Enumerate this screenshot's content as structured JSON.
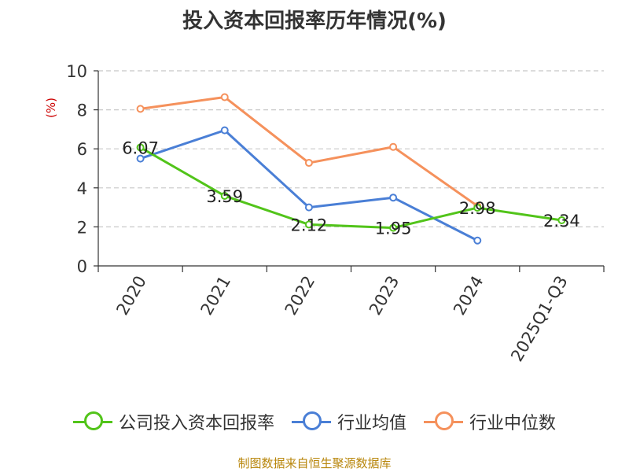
{
  "title": "投入资本回报率历年情况(%)",
  "unit_label": "(%)",
  "source": "制图数据来自恒生聚源数据库",
  "chart_data": {
    "type": "line",
    "title": "投入资本回报率历年情况(%)",
    "xlabel": "",
    "ylabel": "(%)",
    "ylim": [
      0,
      10
    ],
    "yticks": [
      "0",
      "2",
      "4",
      "6",
      "8",
      "10"
    ],
    "categories": [
      "2020",
      "2021",
      "2022",
      "2023",
      "2024",
      "2025Q1-Q3"
    ],
    "grid": true,
    "legend_position": "bottom",
    "series": [
      {
        "name": "公司投入资本回报率",
        "color": "#52c41a",
        "values": [
          6.07,
          3.59,
          2.12,
          1.95,
          2.98,
          2.34
        ],
        "labels": [
          "6.07",
          "3.59",
          "2.12",
          "1.95",
          "2.98",
          "2.34"
        ]
      },
      {
        "name": "行业均值",
        "color": "#4a7fd6",
        "values": [
          5.5,
          6.95,
          3.0,
          3.5,
          1.3,
          null
        ],
        "labels": []
      },
      {
        "name": "行业中位数",
        "color": "#f5915c",
        "values": [
          8.05,
          8.65,
          5.28,
          6.1,
          3.07,
          null
        ],
        "labels": []
      }
    ]
  }
}
